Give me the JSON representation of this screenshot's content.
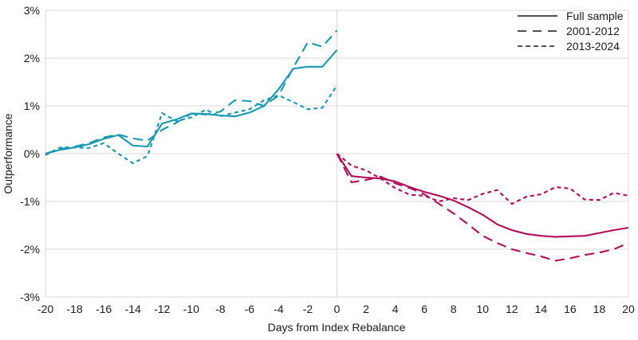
{
  "chart_data": {
    "type": "line",
    "title": "",
    "xlabel": "Days from Index Rebalance",
    "ylabel": "Outperformance",
    "xlim": [
      -20,
      20
    ],
    "ylim": [
      -3,
      3
    ],
    "x_tick_values": [
      -20,
      -18,
      -16,
      -14,
      -12,
      -10,
      -8,
      -6,
      -4,
      -2,
      0,
      2,
      4,
      6,
      8,
      10,
      12,
      14,
      16,
      18,
      20
    ],
    "y_tick_values": [
      3,
      2,
      1,
      0,
      -1,
      -2,
      -3
    ],
    "y_tick_labels": [
      "3%",
      "2%",
      "1%",
      "0%",
      "-1%",
      "-2%",
      "-3%"
    ],
    "grid": {
      "horizontal": true,
      "vertical_lines_at": [
        -20,
        0,
        20
      ]
    },
    "colors": {
      "pre_rebalance": "#1899b2",
      "post_rebalance": "#b30d5b",
      "grid": "#d9d9d9",
      "legend_line": "#3a3a3a",
      "text": "#1a1a1a",
      "background": "#ffffff"
    },
    "legend": {
      "position": "top-right",
      "entries": [
        {
          "label": "Full sample",
          "style": "solid"
        },
        {
          "label": "2001-2012",
          "style": "long-dash"
        },
        {
          "label": "2013-2024",
          "style": "short-dash"
        }
      ]
    },
    "series": [
      {
        "name": "Full sample (pre-rebalance)",
        "period": "pre",
        "style": "solid",
        "color": "#1899b2",
        "x": [
          -20,
          -19,
          -18,
          -17,
          -16,
          -15,
          -14,
          -13,
          -12,
          -11,
          -10,
          -9,
          -8,
          -7,
          -6,
          -5,
          -4,
          -3,
          -2,
          -1,
          0
        ],
        "y": [
          0.0,
          0.08,
          0.13,
          0.2,
          0.31,
          0.39,
          0.17,
          0.15,
          0.63,
          0.72,
          0.84,
          0.83,
          0.8,
          0.78,
          0.86,
          1.0,
          1.35,
          1.78,
          1.82,
          1.82,
          2.17
        ]
      },
      {
        "name": "2001-2012 (pre-rebalance)",
        "period": "pre",
        "style": "long-dash",
        "color": "#1899b2",
        "x": [
          -20,
          -19,
          -18,
          -17,
          -16,
          -15,
          -14,
          -13,
          -12,
          -11,
          -10,
          -9,
          -8,
          -7,
          -6,
          -5,
          -4,
          -3,
          -2,
          -1,
          0
        ],
        "y": [
          0.0,
          0.1,
          0.15,
          0.22,
          0.34,
          0.4,
          0.32,
          0.27,
          0.5,
          0.65,
          0.84,
          0.82,
          0.88,
          1.12,
          1.1,
          1.0,
          1.22,
          1.8,
          2.33,
          2.24,
          2.58
        ]
      },
      {
        "name": "2013-2024 (pre-rebalance)",
        "period": "pre",
        "style": "short-dash",
        "color": "#1899b2",
        "x": [
          -20,
          -19,
          -18,
          -17,
          -16,
          -15,
          -14,
          -13,
          -12,
          -11,
          -10,
          -9,
          -8,
          -7,
          -6,
          -5,
          -4,
          -3,
          -2,
          -1,
          0
        ],
        "y": [
          -0.03,
          0.13,
          0.13,
          0.12,
          0.22,
          0.0,
          -0.2,
          -0.05,
          0.85,
          0.68,
          0.76,
          0.92,
          0.78,
          0.86,
          0.93,
          1.12,
          1.22,
          1.08,
          0.93,
          0.96,
          1.43
        ]
      },
      {
        "name": "Full sample (post-rebalance)",
        "period": "post",
        "style": "solid",
        "color": "#b30d5b",
        "x": [
          0,
          1,
          2,
          3,
          4,
          5,
          6,
          7,
          8,
          9,
          10,
          11,
          12,
          13,
          14,
          15,
          16,
          17,
          18,
          19,
          20
        ],
        "y": [
          0.0,
          -0.47,
          -0.5,
          -0.52,
          -0.58,
          -0.7,
          -0.8,
          -0.88,
          -0.98,
          -1.12,
          -1.28,
          -1.48,
          -1.6,
          -1.68,
          -1.72,
          -1.74,
          -1.73,
          -1.72,
          -1.66,
          -1.6,
          -1.55
        ]
      },
      {
        "name": "2001-2012 (post-rebalance)",
        "period": "post",
        "style": "long-dash",
        "color": "#b30d5b",
        "x": [
          0,
          1,
          2,
          3,
          4,
          5,
          6,
          7,
          8,
          9,
          10,
          11,
          12,
          13,
          14,
          15,
          16,
          17,
          18,
          19,
          20
        ],
        "y": [
          0.0,
          -0.6,
          -0.55,
          -0.48,
          -0.62,
          -0.72,
          -0.85,
          -1.05,
          -1.25,
          -1.48,
          -1.72,
          -1.87,
          -2.0,
          -2.08,
          -2.15,
          -2.24,
          -2.19,
          -2.12,
          -2.07,
          -2.0,
          -1.87
        ]
      },
      {
        "name": "2013-2024 (post-rebalance)",
        "period": "post",
        "style": "short-dash",
        "color": "#b30d5b",
        "x": [
          0,
          1,
          2,
          3,
          4,
          5,
          6,
          7,
          8,
          9,
          10,
          11,
          12,
          13,
          14,
          15,
          16,
          17,
          18,
          19,
          20
        ],
        "y": [
          0.0,
          -0.25,
          -0.35,
          -0.52,
          -0.72,
          -0.86,
          -0.88,
          -1.0,
          -0.93,
          -0.97,
          -0.84,
          -0.76,
          -1.05,
          -0.9,
          -0.85,
          -0.7,
          -0.73,
          -0.96,
          -0.97,
          -0.82,
          -0.88
        ]
      }
    ]
  }
}
